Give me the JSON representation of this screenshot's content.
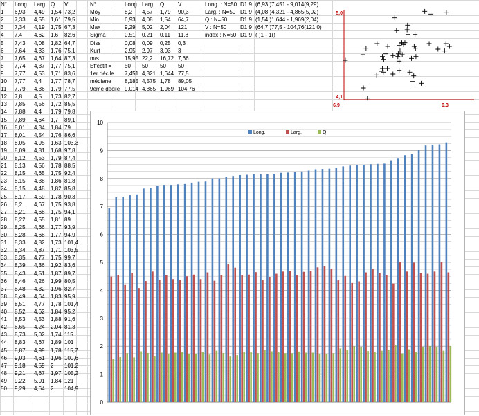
{
  "left_table": {
    "headers": [
      "N°",
      "Long.",
      "Larg.",
      "Q",
      "V"
    ],
    "rows": [
      [
        "1",
        "6,93",
        "4,49",
        "1,54",
        "73,2"
      ],
      [
        "2",
        "7,33",
        "4,55",
        "1,61",
        "79,5"
      ],
      [
        "3",
        "7,34",
        "4,19",
        "1,75",
        "67,3"
      ],
      [
        "4",
        "7,4",
        "4,62",
        "1,6",
        "82,6"
      ],
      [
        "5",
        "7,43",
        "4,08",
        "1,82",
        "64,7"
      ],
      [
        "6",
        "7,64",
        "4,33",
        "1,76",
        "75,1"
      ],
      [
        "7",
        "7,65",
        "4,67",
        "1,64",
        "87,3"
      ],
      [
        "8",
        "7,74",
        "4,37",
        "1,77",
        "75,1"
      ],
      [
        "9",
        "7,77",
        "4,53",
        "1,71",
        "83,6"
      ],
      [
        "10",
        "7,77",
        "4,4",
        "1,77",
        "78,7"
      ],
      [
        "11",
        "7,79",
        "4,36",
        "1,79",
        "77,5"
      ],
      [
        "12",
        "7,8",
        "4,5",
        "1,73",
        "82,7"
      ],
      [
        "13",
        "7,85",
        "4,56",
        "1,72",
        "85,5"
      ],
      [
        "14",
        "7,88",
        "4,4",
        "1,79",
        "79,8"
      ],
      [
        "15",
        "7,89",
        "4,64",
        "1,7",
        "89,1"
      ],
      [
        "16",
        "8,01",
        "4,34",
        "1,84",
        "79"
      ],
      [
        "17",
        "8,01",
        "4,54",
        "1,76",
        "86,6"
      ],
      [
        "18",
        "8,05",
        "4,95",
        "1,63",
        "103,3"
      ],
      [
        "19",
        "8,09",
        "4,81",
        "1,68",
        "97,8"
      ],
      [
        "20",
        "8,12",
        "4,53",
        "1,79",
        "87,4"
      ],
      [
        "21",
        "8,13",
        "4,56",
        "1,78",
        "88,5"
      ],
      [
        "22",
        "8,15",
        "4,65",
        "1,75",
        "92,4"
      ],
      [
        "23",
        "8,15",
        "4,38",
        "1,86",
        "81,8"
      ],
      [
        "24",
        "8,15",
        "4,48",
        "1,82",
        "85,8"
      ],
      [
        "25",
        "8,17",
        "4,59",
        "1,78",
        "90,3"
      ],
      [
        "26",
        "8,2",
        "4,67",
        "1,75",
        "93,8"
      ],
      [
        "27",
        "8,21",
        "4,68",
        "1,75",
        "94,1"
      ],
      [
        "28",
        "8,22",
        "4,55",
        "1,81",
        "89"
      ],
      [
        "29",
        "8,25",
        "4,66",
        "1,77",
        "93,9"
      ],
      [
        "30",
        "8,28",
        "4,68",
        "1,77",
        "94,9"
      ],
      [
        "31",
        "8,33",
        "4,82",
        "1,73",
        "101,4"
      ],
      [
        "32",
        "8,34",
        "4,87",
        "1,71",
        "103,5"
      ],
      [
        "33",
        "8,35",
        "4,77",
        "1,75",
        "99,7"
      ],
      [
        "34",
        "8,39",
        "4,36",
        "1,92",
        "83,6"
      ],
      [
        "35",
        "8,43",
        "4,51",
        "1,87",
        "89,7"
      ],
      [
        "36",
        "8,46",
        "4,26",
        "1,99",
        "80,5"
      ],
      [
        "37",
        "8,48",
        "4,32",
        "1,96",
        "82,7"
      ],
      [
        "38",
        "8,49",
        "4,64",
        "1,83",
        "95,9"
      ],
      [
        "39",
        "8,51",
        "4,77",
        "1,78",
        "101,4"
      ],
      [
        "40",
        "8,52",
        "4,62",
        "1,84",
        "95,2"
      ],
      [
        "41",
        "8,53",
        "4,53",
        "1,88",
        "91,6"
      ],
      [
        "42",
        "8,65",
        "4,24",
        "2,04",
        "81,3"
      ],
      [
        "43",
        "8,73",
        "5,02",
        "1,74",
        "115"
      ],
      [
        "44",
        "8,83",
        "4,67",
        "1,89",
        "101"
      ],
      [
        "45",
        "8,87",
        "4,99",
        "1,78",
        "115,7"
      ],
      [
        "46",
        "9,03",
        "4,61",
        "1,96",
        "100,6"
      ],
      [
        "47",
        "9,18",
        "4,59",
        "2",
        "101,2"
      ],
      [
        "48",
        "9,21",
        "4,67",
        "1,97",
        "105,2"
      ],
      [
        "49",
        "9,22",
        "5,01",
        "1,84",
        "121"
      ],
      [
        "50",
        "9,29",
        "4,64",
        "2",
        "104,9"
      ]
    ]
  },
  "stats_table": {
    "headers": [
      "N°",
      "Long.",
      "Larg.",
      "Q",
      "V"
    ],
    "rows": [
      [
        "Moy",
        "8,2",
        "4,57",
        "1,79",
        "90,3"
      ],
      [
        "Min",
        "6,93",
        "4,08",
        "1,54",
        "64,7"
      ],
      [
        "Max",
        "9,29",
        "5,02",
        "2,04",
        "121"
      ],
      [
        "Sigma",
        "0,51",
        "0,21",
        "0,11",
        "11,8"
      ],
      [
        "Diss",
        "0,08",
        "0,09",
        "0,25",
        "0,3"
      ],
      [
        "Kurt",
        "2,95",
        "2,97",
        "3,03",
        "3"
      ],
      [
        "m/s",
        "15,95",
        "22,2",
        "16,72",
        "7,66"
      ],
      [
        "Effectif =",
        "50",
        "50",
        "50",
        "50"
      ],
      [
        "1er décile",
        "7,451",
        "4,321",
        "1,644",
        "77,5"
      ],
      [
        "médiane",
        "8,185",
        "4,575",
        "1,78",
        "89,05"
      ],
      [
        "9ème décile",
        "9,014",
        "4,865",
        "1,969",
        "104,76"
      ]
    ]
  },
  "info_table": {
    "rows": [
      [
        "Long. : N=50",
        "D1,9",
        "(6,93 )7,451 - 9,014(9,29)"
      ],
      [
        "Larg. : N=50",
        "D1,9",
        "(4,08 )4,321 - 4,865(5,02)"
      ],
      [
        "Q : N=50",
        "D1,9",
        "(1,54 )1,644 - 1,969(2,04)"
      ],
      [
        "V : N=50",
        "D1,9",
        "(64,7 )77,5 - 104,76(121,0)"
      ],
      [
        "index : N=50",
        "D1,9",
        "( )1 - 1()"
      ]
    ]
  },
  "scatter": {
    "x_min_label": "6,9",
    "x_max_label": "9,3",
    "y_min_label": "4,1",
    "y_max_label": "5,0",
    "axis_color": "#c00000",
    "x_range": [
      6.9,
      9.3
    ],
    "y_range": [
      4.1,
      5.0
    ]
  },
  "chart_data": {
    "type": "bar",
    "ylim": [
      0,
      10
    ],
    "y_ticks": [
      "0",
      "1",
      "2",
      "3",
      "4",
      "5",
      "6",
      "7",
      "8",
      "9",
      "10"
    ],
    "series": [
      {
        "name": "Long.",
        "color": "#4f81bd",
        "values": [
          6.93,
          7.33,
          7.34,
          7.4,
          7.43,
          7.64,
          7.65,
          7.74,
          7.77,
          7.77,
          7.79,
          7.8,
          7.85,
          7.88,
          7.89,
          8.01,
          8.01,
          8.05,
          8.09,
          8.12,
          8.13,
          8.15,
          8.15,
          8.15,
          8.17,
          8.2,
          8.21,
          8.22,
          8.25,
          8.28,
          8.33,
          8.34,
          8.35,
          8.39,
          8.43,
          8.46,
          8.48,
          8.49,
          8.51,
          8.52,
          8.53,
          8.65,
          8.73,
          8.83,
          8.87,
          9.03,
          9.18,
          9.21,
          9.22,
          9.29
        ]
      },
      {
        "name": "Larg.",
        "color": "#c0504d",
        "values": [
          4.49,
          4.55,
          4.19,
          4.62,
          4.08,
          4.33,
          4.67,
          4.37,
          4.53,
          4.4,
          4.36,
          4.5,
          4.56,
          4.4,
          4.64,
          4.34,
          4.54,
          4.95,
          4.81,
          4.53,
          4.56,
          4.65,
          4.38,
          4.48,
          4.59,
          4.67,
          4.68,
          4.55,
          4.66,
          4.68,
          4.82,
          4.87,
          4.77,
          4.36,
          4.51,
          4.26,
          4.32,
          4.64,
          4.77,
          4.62,
          4.53,
          4.24,
          5.02,
          4.67,
          4.99,
          4.61,
          4.59,
          4.67,
          5.01,
          4.64
        ]
      },
      {
        "name": "Q",
        "color": "#9bbb59",
        "values": [
          1.54,
          1.61,
          1.75,
          1.6,
          1.82,
          1.76,
          1.64,
          1.77,
          1.71,
          1.77,
          1.79,
          1.73,
          1.72,
          1.79,
          1.7,
          1.84,
          1.76,
          1.63,
          1.68,
          1.79,
          1.78,
          1.75,
          1.86,
          1.82,
          1.78,
          1.75,
          1.75,
          1.81,
          1.77,
          1.77,
          1.73,
          1.71,
          1.75,
          1.92,
          1.87,
          1.99,
          1.96,
          1.83,
          1.78,
          1.84,
          1.88,
          2.04,
          1.74,
          1.89,
          1.78,
          1.96,
          2,
          1.97,
          1.84,
          2
        ]
      }
    ],
    "gridlines": true,
    "legend_position": "top-center"
  }
}
